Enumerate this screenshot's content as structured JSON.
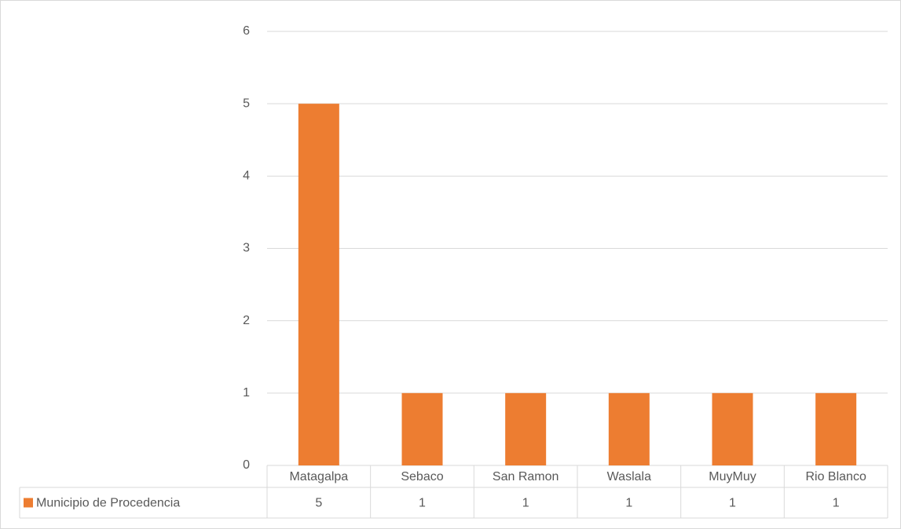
{
  "chart_data": {
    "type": "bar",
    "categories": [
      "Matagalpa",
      "Sebaco",
      "San Ramon",
      "Waslala",
      "MuyMuy",
      "Rio Blanco"
    ],
    "series": [
      {
        "name": "Municipio de Procedencia",
        "color": "#ed7d31",
        "values": [
          5,
          1,
          1,
          1,
          1,
          1
        ]
      }
    ],
    "ylim": [
      0,
      6
    ],
    "yticks": [
      0,
      1,
      2,
      3,
      4,
      5,
      6
    ],
    "grid": true,
    "data_table": true
  }
}
